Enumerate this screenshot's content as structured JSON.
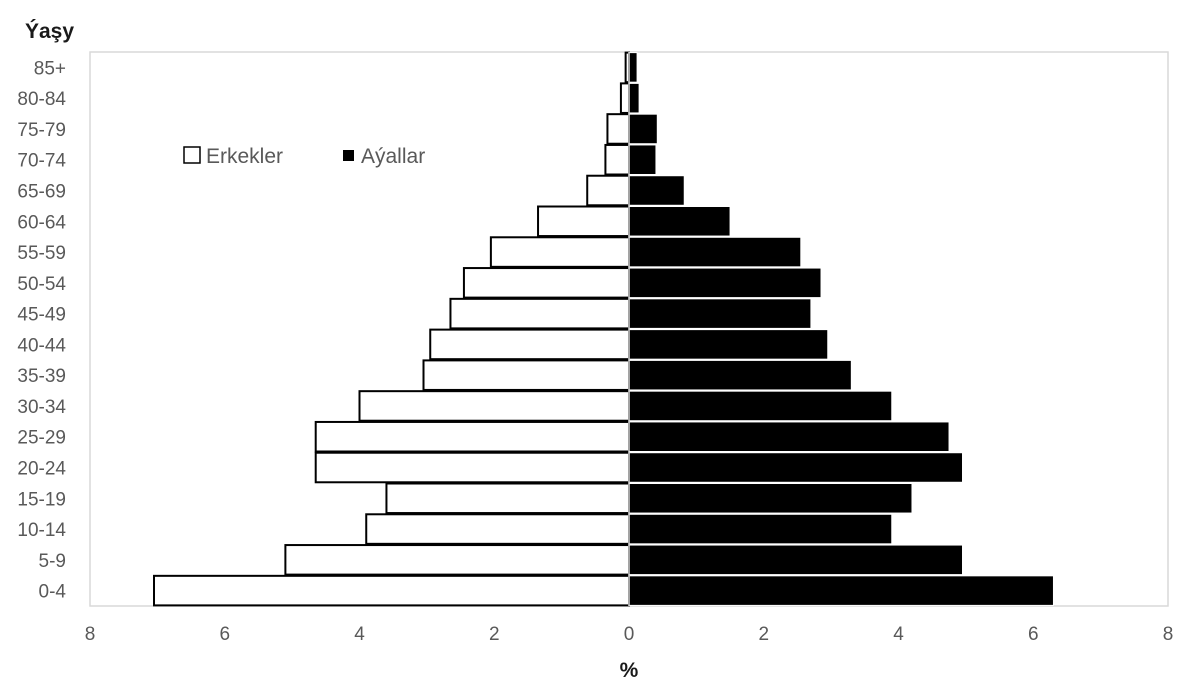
{
  "chart_data": {
    "type": "bar",
    "orientation": "horizontal-population-pyramid",
    "ylabel": "Ýaşy",
    "xlabel": "%",
    "categories": [
      "0-4",
      "5-9",
      "10-14",
      "15-19",
      "20-24",
      "25-29",
      "30-34",
      "35-39",
      "40-44",
      "45-49",
      "50-54",
      "55-59",
      "60-64",
      "65-69",
      "70-74",
      "75-79",
      "80-84",
      "85+"
    ],
    "series": [
      {
        "name": "Erkekler",
        "side": "left",
        "color": "#ffffff",
        "values": [
          7.05,
          5.1,
          3.9,
          3.6,
          4.65,
          4.65,
          4.0,
          3.05,
          2.95,
          2.65,
          2.45,
          2.05,
          1.35,
          0.62,
          0.35,
          0.32,
          0.12,
          0.05
        ]
      },
      {
        "name": "Aýallar",
        "side": "right",
        "color": "#000000",
        "values": [
          6.3,
          4.95,
          3.9,
          4.2,
          4.95,
          4.75,
          3.9,
          3.3,
          2.95,
          2.7,
          2.85,
          2.55,
          1.5,
          0.82,
          0.4,
          0.42,
          0.15,
          0.12
        ]
      }
    ],
    "xlim": [
      -8,
      8
    ],
    "xticks": [
      -8,
      -6,
      -4,
      -2,
      0,
      2,
      4,
      6,
      8
    ],
    "xtick_labels": [
      "8",
      "6",
      "4",
      "2",
      "0",
      "2",
      "4",
      "6",
      "8"
    ],
    "grid": false,
    "legend": "top-left, inside plot"
  }
}
